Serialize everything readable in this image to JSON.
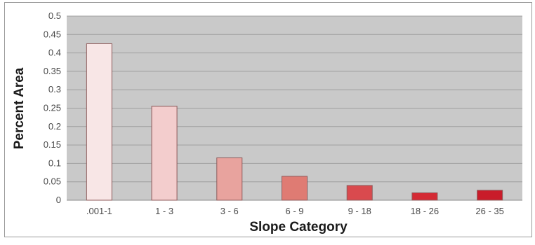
{
  "chart_data": {
    "type": "bar",
    "title": "",
    "xlabel": "Slope Category",
    "ylabel": "Percent Area",
    "categories": [
      ".001-1",
      "1 - 3",
      "3 - 6",
      "6 - 9",
      "9 - 18",
      "18 - 26",
      "26 - 35"
    ],
    "values": [
      0.425,
      0.255,
      0.115,
      0.065,
      0.04,
      0.02,
      0.027
    ],
    "ylim": [
      0,
      0.5
    ],
    "yticks": [
      0,
      0.05,
      0.1,
      0.15,
      0.2,
      0.25,
      0.3,
      0.35,
      0.4,
      0.45,
      0.5
    ],
    "ytick_labels": [
      "0",
      "0.05",
      "0.1",
      "0.15",
      "0.2",
      "0.25",
      "0.3",
      "0.35",
      "0.4",
      "0.45",
      "0.5"
    ],
    "grid": true,
    "legend": "none",
    "plot_background": "#c9c9c9",
    "grid_color": "#9e9e9e",
    "bar_colors": [
      "#f8e6e6",
      "#f3cdcd",
      "#e8a39e",
      "#df7b73",
      "#d94a4e",
      "#d42a34",
      "#c91c2a"
    ],
    "bar_outline": "#8e5a5a"
  }
}
